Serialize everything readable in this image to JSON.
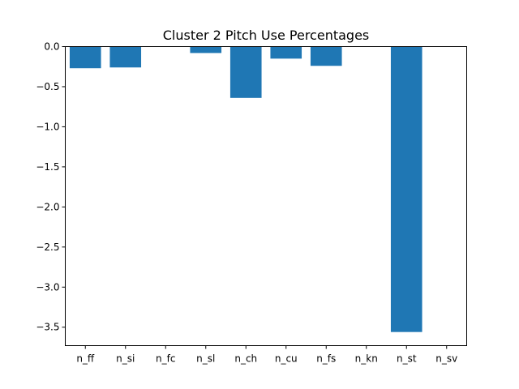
{
  "chart_data": {
    "type": "bar",
    "title": "Cluster 2 Pitch Use Percentages",
    "xlabel": "",
    "ylabel": "",
    "categories": [
      "n_ff",
      "n_si",
      "n_fc",
      "n_sl",
      "n_ch",
      "n_cu",
      "n_fs",
      "n_kn",
      "n_st",
      "n_sv"
    ],
    "values": [
      -0.27,
      -0.26,
      0.0,
      -0.08,
      -0.64,
      -0.15,
      -0.24,
      0.0,
      -3.56,
      0.0
    ],
    "ylim": [
      -3.73,
      0.0
    ],
    "yticks": [
      0.0,
      -0.5,
      -1.0,
      -1.5,
      -2.0,
      -2.5,
      -3.0,
      -3.5
    ],
    "ytick_labels": [
      "0.0",
      "−0.5",
      "−1.0",
      "−1.5",
      "−2.0",
      "−2.5",
      "−3.0",
      "−3.5"
    ],
    "bar_color": "#1f77b4",
    "grid": false,
    "legend": "none"
  }
}
